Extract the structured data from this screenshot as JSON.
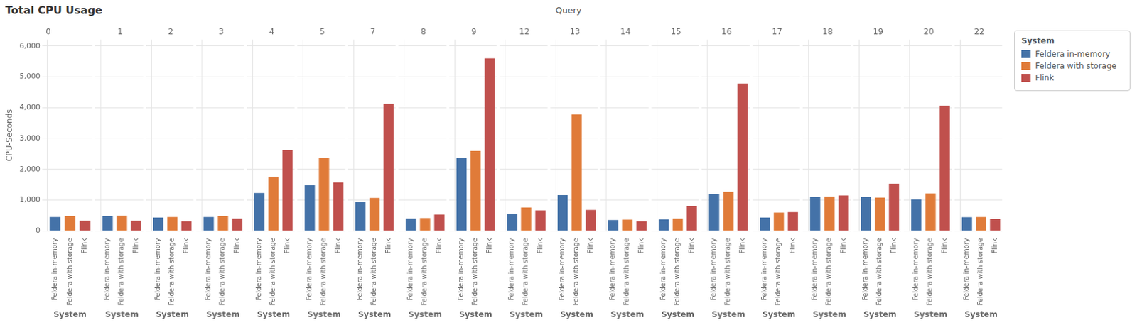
{
  "title": "Total CPU Usage",
  "xlabel": "Query",
  "legend": "upper right",
  "legend_title": "System",
  "series": [
    {
      "name": "Feldera in-memory",
      "color": "#4472a8"
    },
    {
      "name": "Feldera with storage",
      "color": "#e07b39"
    },
    {
      "name": "Flink",
      "color": "#c0504d"
    }
  ],
  "chart_data": [
    {
      "type": "bar",
      "title": "0",
      "xlabel": "System",
      "ylabel": "CPU-Seconds",
      "categories": [
        "Feldera in-memory",
        "Feldera with storage",
        "Flink"
      ],
      "values": [
        450,
        480,
        330
      ],
      "colors": [
        "#4472a8",
        "#e07b39",
        "#c0504d"
      ],
      "ylim": [
        0,
        6200
      ],
      "yticks": [
        0,
        {
          "value": 1000,
          "label": "1,000"
        },
        {
          "value": 2000,
          "label": "2,000"
        },
        {
          "value": 3000,
          "label": "3,000"
        },
        {
          "value": 4000,
          "label": "4,000"
        },
        {
          "value": 5000,
          "label": "5,000"
        },
        {
          "value": 6000,
          "label": "6,000"
        }
      ],
      "grid": true
    },
    {
      "type": "bar",
      "title": "1",
      "xlabel": "System",
      "categories": [
        "Feldera in-memory",
        "Feldera with storage",
        "Flink"
      ],
      "values": [
        480,
        490,
        330
      ],
      "colors": [
        "#4472a8",
        "#e07b39",
        "#c0504d"
      ],
      "ylim": [
        0,
        6200
      ],
      "yticks": [
        0,
        1000,
        2000,
        3000,
        4000,
        5000,
        6000
      ],
      "grid": true,
      "tick_labels": "x"
    },
    {
      "type": "bar",
      "title": "2",
      "xlabel": "System",
      "categories": [
        "Feldera in-memory",
        "Feldera with storage",
        "Flink"
      ],
      "values": [
        430,
        450,
        310
      ],
      "colors": [
        "#4472a8",
        "#e07b39",
        "#c0504d"
      ],
      "ylim": [
        0,
        6200
      ],
      "yticks": [
        0,
        1000,
        2000,
        3000,
        4000,
        5000,
        6000
      ],
      "grid": true,
      "tick_labels": "x"
    },
    {
      "type": "bar",
      "title": "3",
      "xlabel": "System",
      "categories": [
        "Feldera in-memory",
        "Feldera with storage",
        "Flink"
      ],
      "values": [
        450,
        480,
        400
      ],
      "colors": [
        "#4472a8",
        "#e07b39",
        "#c0504d"
      ],
      "ylim": [
        0,
        6200
      ],
      "yticks": [
        0,
        1000,
        2000,
        3000,
        4000,
        5000,
        6000
      ],
      "grid": true,
      "tick_labels": "x"
    },
    {
      "type": "bar",
      "title": "4",
      "xlabel": "System",
      "categories": [
        "Feldera in-memory",
        "Feldera with storage",
        "Flink"
      ],
      "values": [
        1230,
        1760,
        2620
      ],
      "colors": [
        "#4472a8",
        "#e07b39",
        "#c0504d"
      ],
      "ylim": [
        0,
        6200
      ],
      "yticks": [
        0,
        1000,
        2000,
        3000,
        4000,
        5000,
        6000
      ],
      "grid": true,
      "tick_labels": "x"
    },
    {
      "type": "bar",
      "title": "5",
      "xlabel": "System",
      "categories": [
        "Feldera in-memory",
        "Feldera with storage",
        "Flink"
      ],
      "values": [
        1480,
        2370,
        1570
      ],
      "colors": [
        "#4472a8",
        "#e07b39",
        "#c0504d"
      ],
      "ylim": [
        0,
        6200
      ],
      "yticks": [
        0,
        1000,
        2000,
        3000,
        4000,
        5000,
        6000
      ],
      "grid": true,
      "tick_labels": "x"
    },
    {
      "type": "bar",
      "title": "7",
      "xlabel": "System",
      "categories": [
        "Feldera in-memory",
        "Feldera with storage",
        "Flink"
      ],
      "values": [
        940,
        1070,
        4120
      ],
      "colors": [
        "#4472a8",
        "#e07b39",
        "#c0504d"
      ],
      "ylim": [
        0,
        6200
      ],
      "yticks": [
        0,
        1000,
        2000,
        3000,
        4000,
        5000,
        6000
      ],
      "grid": true,
      "tick_labels": "x"
    },
    {
      "type": "bar",
      "title": "8",
      "xlabel": "System",
      "categories": [
        "Feldera in-memory",
        "Feldera with storage",
        "Flink"
      ],
      "values": [
        400,
        415,
        530
      ],
      "colors": [
        "#4472a8",
        "#e07b39",
        "#c0504d"
      ],
      "ylim": [
        0,
        6200
      ],
      "yticks": [
        0,
        1000,
        2000,
        3000,
        4000,
        5000,
        6000
      ],
      "grid": true,
      "tick_labels": "x"
    },
    {
      "type": "bar",
      "title": "9",
      "xlabel": "System",
      "categories": [
        "Feldera in-memory",
        "Feldera with storage",
        "Flink"
      ],
      "values": [
        2380,
        2590,
        5600
      ],
      "colors": [
        "#4472a8",
        "#e07b39",
        "#c0504d"
      ],
      "ylim": [
        0,
        6200
      ],
      "yticks": [
        0,
        1000,
        2000,
        3000,
        4000,
        5000,
        6000
      ],
      "grid": true,
      "tick_labels": "x"
    },
    {
      "type": "bar",
      "title": "12",
      "xlabel": "System",
      "categories": [
        "Feldera in-memory",
        "Feldera with storage",
        "Flink"
      ],
      "values": [
        560,
        760,
        660
      ],
      "colors": [
        "#4472a8",
        "#e07b39",
        "#c0504d"
      ],
      "ylim": [
        0,
        6200
      ],
      "yticks": [
        0,
        1000,
        2000,
        3000,
        4000,
        5000,
        6000
      ],
      "grid": true,
      "tick_labels": "x"
    },
    {
      "type": "bar",
      "title": "13",
      "xlabel": "System",
      "categories": [
        "Feldera in-memory",
        "Feldera with storage",
        "Flink"
      ],
      "values": [
        1160,
        3780,
        680
      ],
      "colors": [
        "#4472a8",
        "#e07b39",
        "#c0504d"
      ],
      "ylim": [
        0,
        6200
      ],
      "yticks": [
        0,
        1000,
        2000,
        3000,
        4000,
        5000,
        6000
      ],
      "grid": true,
      "tick_labels": "x"
    },
    {
      "type": "bar",
      "title": "14",
      "xlabel": "System",
      "categories": [
        "Feldera in-memory",
        "Feldera with storage",
        "Flink"
      ],
      "values": [
        350,
        360,
        310
      ],
      "colors": [
        "#4472a8",
        "#e07b39",
        "#c0504d"
      ],
      "ylim": [
        0,
        6200
      ],
      "yticks": [
        0,
        1000,
        2000,
        3000,
        4000,
        5000,
        6000
      ],
      "grid": true,
      "tick_labels": "x"
    },
    {
      "type": "bar",
      "title": "15",
      "xlabel": "System",
      "categories": [
        "Feldera in-memory",
        "Feldera with storage",
        "Flink"
      ],
      "values": [
        370,
        400,
        800
      ],
      "colors": [
        "#4472a8",
        "#e07b39",
        "#c0504d"
      ],
      "ylim": [
        0,
        6200
      ],
      "yticks": [
        0,
        1000,
        2000,
        3000,
        4000,
        5000,
        6000
      ],
      "grid": true,
      "tick_labels": "x"
    },
    {
      "type": "bar",
      "title": "16",
      "xlabel": "System",
      "categories": [
        "Feldera in-memory",
        "Feldera with storage",
        "Flink"
      ],
      "values": [
        1200,
        1270,
        4780
      ],
      "colors": [
        "#4472a8",
        "#e07b39",
        "#c0504d"
      ],
      "ylim": [
        0,
        6200
      ],
      "yticks": [
        0,
        1000,
        2000,
        3000,
        4000,
        5000,
        6000
      ],
      "grid": true,
      "tick_labels": "x"
    },
    {
      "type": "bar",
      "title": "17",
      "xlabel": "System",
      "categories": [
        "Feldera in-memory",
        "Feldera with storage",
        "Flink"
      ],
      "values": [
        430,
        590,
        610
      ],
      "colors": [
        "#4472a8",
        "#e07b39",
        "#c0504d"
      ],
      "ylim": [
        0,
        6200
      ],
      "yticks": [
        0,
        1000,
        2000,
        3000,
        4000,
        5000,
        6000
      ],
      "grid": true,
      "tick_labels": "x"
    },
    {
      "type": "bar",
      "title": "18",
      "xlabel": "System",
      "categories": [
        "Feldera in-memory",
        "Feldera with storage",
        "Flink"
      ],
      "values": [
        1100,
        1110,
        1150
      ],
      "colors": [
        "#4472a8",
        "#e07b39",
        "#c0504d"
      ],
      "ylim": [
        0,
        6200
      ],
      "yticks": [
        0,
        1000,
        2000,
        3000,
        4000,
        5000,
        6000
      ],
      "grid": true,
      "tick_labels": "x"
    },
    {
      "type": "bar",
      "title": "19",
      "xlabel": "System",
      "categories": [
        "Feldera in-memory",
        "Feldera with storage",
        "Flink"
      ],
      "values": [
        1100,
        1080,
        1530
      ],
      "colors": [
        "#4472a8",
        "#e07b39",
        "#c0504d"
      ],
      "ylim": [
        0,
        6200
      ],
      "yticks": [
        0,
        1000,
        2000,
        3000,
        4000,
        5000,
        6000
      ],
      "grid": true,
      "tick_labels": "x"
    },
    {
      "type": "bar",
      "title": "20",
      "xlabel": "System",
      "categories": [
        "Feldera in-memory",
        "Feldera with storage",
        "Flink"
      ],
      "values": [
        1020,
        1210,
        4060
      ],
      "colors": [
        "#4472a8",
        "#e07b39",
        "#c0504d"
      ],
      "ylim": [
        0,
        6200
      ],
      "yticks": [
        0,
        1000,
        2000,
        3000,
        4000,
        5000,
        6000
      ],
      "grid": true,
      "tick_labels": "x"
    },
    {
      "type": "bar",
      "title": "22",
      "xlabel": "System",
      "categories": [
        "Feldera in-memory",
        "Feldera with storage",
        "Flink"
      ],
      "values": [
        440,
        450,
        390
      ],
      "colors": [
        "#4472a8",
        "#e07b39",
        "#c0504d"
      ],
      "ylim": [
        0,
        6200
      ],
      "yticks": [
        0,
        1000,
        2000,
        3000,
        4000,
        5000,
        6000
      ],
      "grid": true,
      "tick_labels": "x"
    }
  ]
}
